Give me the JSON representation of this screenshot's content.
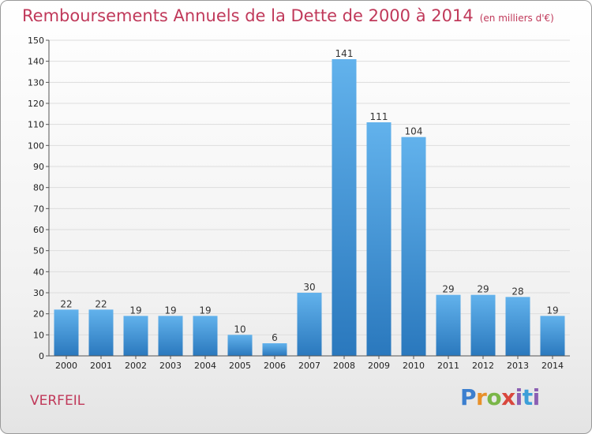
{
  "title": "Remboursements Annuels de la Dette de 2000 à 2014",
  "unit_note": "(en milliers d'€)",
  "commune": "VERFEIL",
  "logo_text": "Proxiti",
  "colors": {
    "title": "#c0395a",
    "bar_top": "#62b2ec",
    "bar_bottom": "#2a78bd",
    "grid": "#dddddd"
  },
  "chart_data": {
    "type": "bar",
    "categories": [
      "2000",
      "2001",
      "2002",
      "2003",
      "2004",
      "2005",
      "2006",
      "2007",
      "2008",
      "2009",
      "2010",
      "2011",
      "2012",
      "2013",
      "2014"
    ],
    "values": [
      22,
      22,
      19,
      19,
      19,
      10,
      6,
      30,
      141,
      111,
      104,
      29,
      29,
      28,
      19
    ],
    "ylim": [
      0,
      150
    ],
    "yticks": [
      0,
      10,
      20,
      30,
      40,
      50,
      60,
      70,
      80,
      90,
      100,
      110,
      120,
      130,
      140,
      150
    ],
    "grid": true,
    "data_labels": true
  }
}
